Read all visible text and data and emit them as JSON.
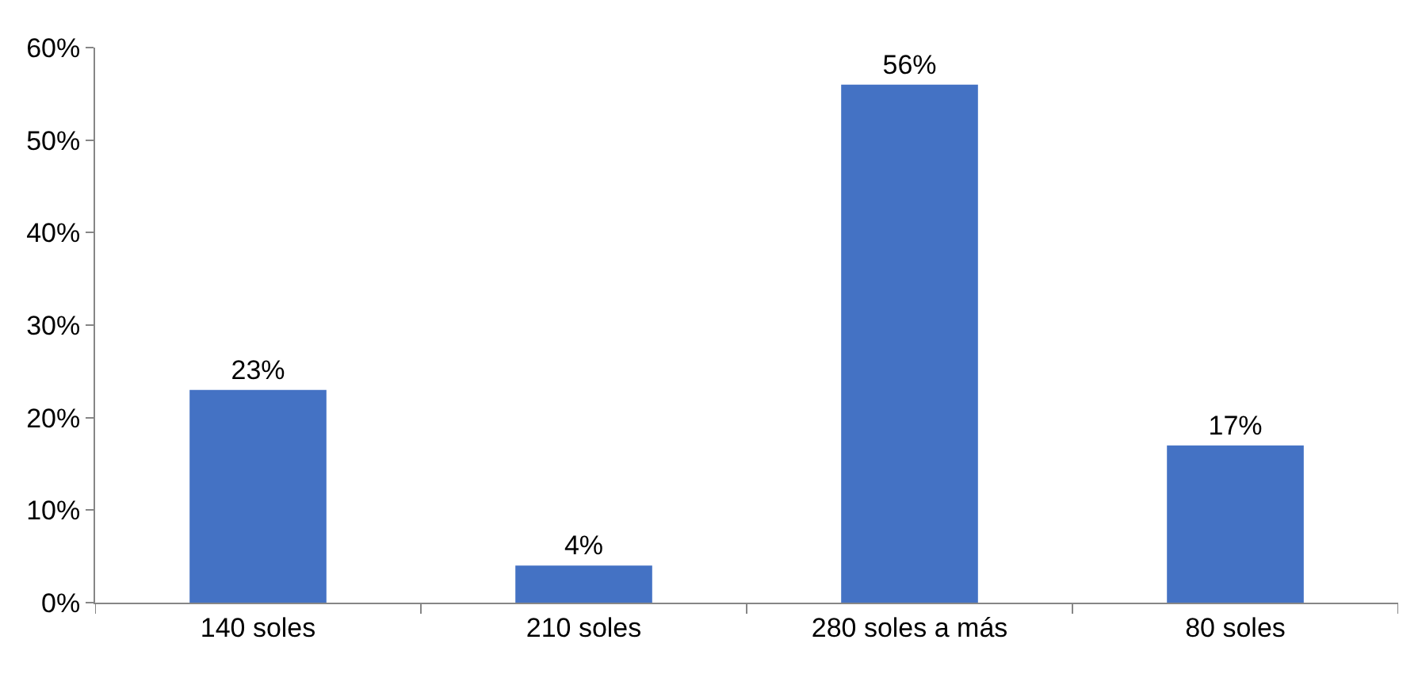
{
  "chart_data": {
    "type": "bar",
    "categories": [
      "140 soles",
      "210 soles",
      "280 soles a más",
      "80 soles"
    ],
    "values": [
      23,
      4,
      56,
      17
    ],
    "value_labels": [
      "23%",
      "4%",
      "56%",
      "17%"
    ],
    "color": "#4472c4",
    "ylim": [
      0,
      60
    ],
    "yticks": [
      {
        "value": 0,
        "label": "0%"
      },
      {
        "value": 10,
        "label": "10%"
      },
      {
        "value": 20,
        "label": "20%"
      },
      {
        "value": 30,
        "label": "30%"
      },
      {
        "value": 40,
        "label": "40%"
      },
      {
        "value": 50,
        "label": "50%"
      },
      {
        "value": 60,
        "label": "60%"
      }
    ],
    "grid": false
  }
}
